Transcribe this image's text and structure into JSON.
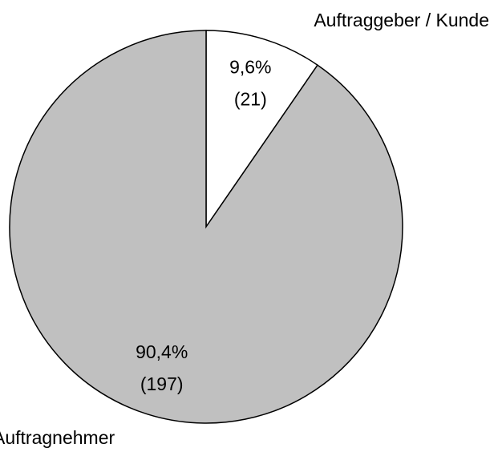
{
  "chart_data": {
    "type": "pie",
    "categories": [
      "Auftraggeber / Kunde",
      "Auftragnehmer"
    ],
    "values": [
      9.6,
      90.4
    ],
    "value_labels": [
      "9,6%",
      "90,4%"
    ],
    "counts": [
      21,
      197
    ],
    "count_labels": [
      "(21)",
      "(197)"
    ],
    "colors": [
      "#ffffff",
      "#c0c0c0"
    ]
  }
}
